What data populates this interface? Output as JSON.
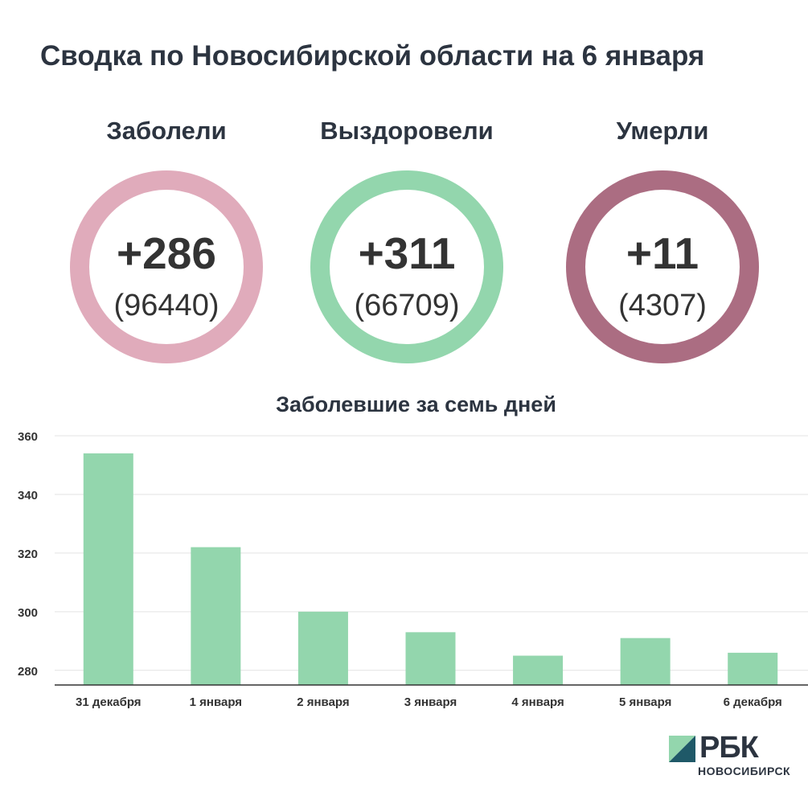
{
  "title": "Сводка по Новосибирской области на 6 января",
  "stats": [
    {
      "label": "Заболели",
      "delta": "+286",
      "total": "(96440)",
      "color": "#e0abbb"
    },
    {
      "label": "Выздоровели",
      "delta": "+311",
      "total": "(66709)",
      "color": "#93d6ad"
    },
    {
      "label": "Умерли",
      "delta": "+11",
      "total": "(4307)",
      "color": "#ab6d82"
    }
  ],
  "chart_data": {
    "type": "bar",
    "title": "Заболевшие за семь дней",
    "categories": [
      "31 декабря",
      "1 января",
      "2 января",
      "3 января",
      "4 января",
      "5 января",
      "6 декабря"
    ],
    "values": [
      354,
      322,
      300,
      293,
      285,
      291,
      286
    ],
    "ylim": [
      275,
      360
    ],
    "yticks": [
      280,
      300,
      320,
      340,
      360
    ],
    "grid": true,
    "bar_color": "#93d6ad"
  },
  "logo": {
    "name": "РБК",
    "subtitle": "НОВОСИБИРСК",
    "colors": [
      "#93d6ad",
      "#1f5968"
    ]
  }
}
